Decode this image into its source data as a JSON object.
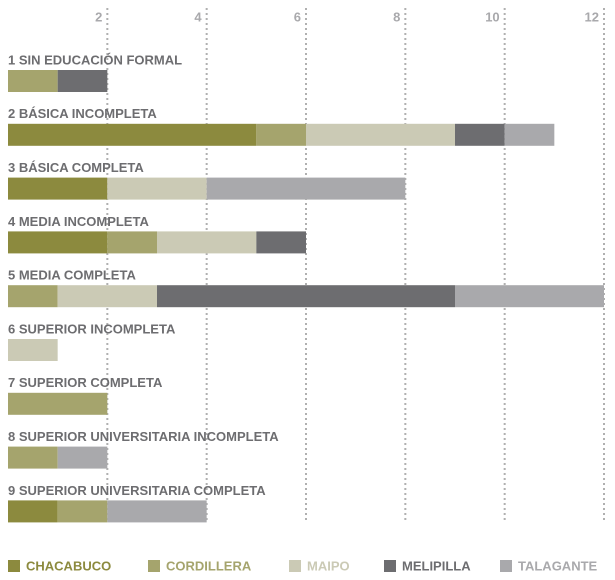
{
  "chart_data": {
    "type": "stacked-bar-horizontal",
    "categories": [
      "1 SIN EDUCACIÓN FORMAL",
      "2 BÁSICA INCOMPLETA",
      "3 BÁSICA COMPLETA",
      "4 MEDIA INCOMPLETA",
      "5 MEDIA COMPLETA",
      "6 SUPERIOR INCOMPLETA",
      "7 SUPERIOR COMPLETA",
      "8 SUPERIOR UNIVERSITARIA INCOMPLETA",
      "9 SUPERIOR UNIVERSITARIA COMPLETA"
    ],
    "series": [
      {
        "name": "CHACABUCO",
        "color": "#8c8a3e",
        "values": [
          0,
          5,
          2,
          2,
          0,
          0,
          0,
          0,
          1
        ]
      },
      {
        "name": "CORDILLERA",
        "color": "#a5a46d",
        "values": [
          1,
          1,
          0,
          1,
          1,
          0,
          2,
          1,
          1
        ]
      },
      {
        "name": "MAIPO",
        "color": "#cbcab5",
        "values": [
          0,
          3,
          2,
          2,
          2,
          1,
          0,
          0,
          0
        ]
      },
      {
        "name": "MELIPILLA",
        "color": "#6d6d70",
        "values": [
          1,
          1,
          0,
          1,
          6,
          0,
          0,
          0,
          0
        ]
      },
      {
        "name": "TALAGANTE",
        "color": "#a9a9ac",
        "values": [
          0,
          1,
          4,
          0,
          3,
          0,
          0,
          1,
          2
        ]
      }
    ],
    "xlim": [
      0,
      12
    ],
    "xticks": [
      2,
      4,
      6,
      8,
      10,
      12
    ],
    "grid": true
  }
}
